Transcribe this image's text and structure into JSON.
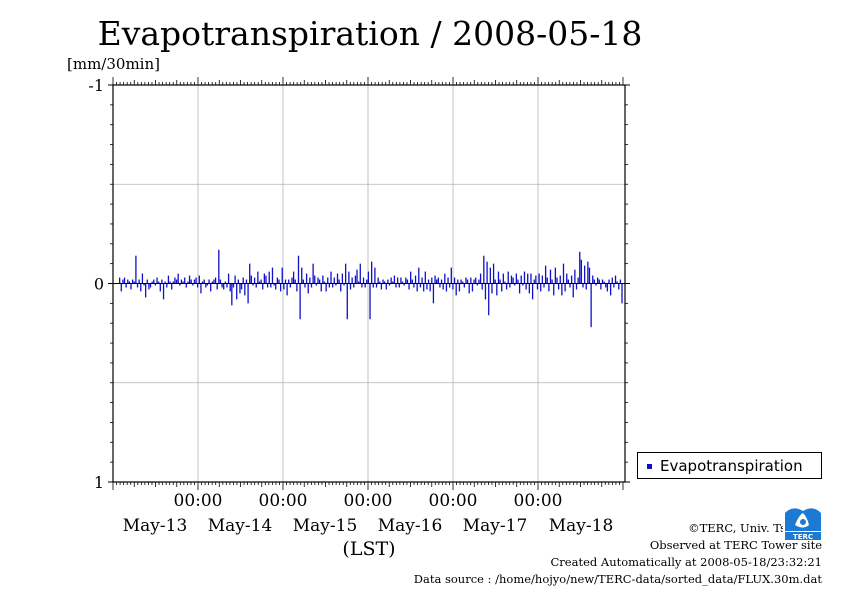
{
  "chart_data": {
    "type": "bar",
    "title": "Evapotranspiration / 2008-05-18",
    "ylabel": "[mm/30min]",
    "xlabel": "(LST)",
    "ylim": [
      -1,
      1
    ],
    "yticks": [
      "-1",
      "0",
      "1"
    ],
    "xtick_times": [
      "00:00",
      "00:00",
      "00:00",
      "00:00",
      "00:00"
    ],
    "xtick_dates": [
      "May-13",
      "May-14",
      "May-15",
      "May-16",
      "May-17",
      "May-18"
    ],
    "grid": true,
    "legend_position": "right-bottom",
    "series": [
      {
        "name": "Evapotranspiration",
        "color": "#1010c8",
        "values": [
          0.03,
          -0.04,
          0.02,
          0.03,
          -0.02,
          0.02,
          0.01,
          -0.03,
          0.02,
          0.01,
          0.14,
          -0.02,
          0.02,
          -0.04,
          0.05,
          -0.01,
          -0.07,
          0.02,
          -0.03,
          -0.02,
          0.01,
          0.02,
          -0.01,
          0.03,
          0.01,
          -0.04,
          0.02,
          -0.08,
          0.01,
          -0.02,
          0.04,
          0.01,
          -0.03,
          0.01,
          0.03,
          0.02,
          0.05,
          -0.01,
          0.02,
          0.01,
          0.03,
          -0.02,
          0.01,
          0.04,
          0.02,
          -0.01,
          0.02,
          0.03,
          -0.02,
          0.04,
          -0.05,
          0.01,
          0.02,
          -0.02,
          -0.01,
          0.02,
          -0.04,
          0.01,
          0.02,
          0.03,
          -0.03,
          0.17,
          0.02,
          -0.02,
          -0.03,
          0.01,
          -0.02,
          0.05,
          -0.04,
          -0.11,
          -0.02,
          0.04,
          -0.08,
          0.02,
          -0.05,
          -0.03,
          0.03,
          -0.06,
          0.02,
          -0.1,
          0.1,
          0.04,
          -0.01,
          0.03,
          -0.02,
          0.06,
          0.01,
          0.02,
          -0.03,
          0.05,
          0.04,
          -0.02,
          0.06,
          -0.02,
          0.08,
          -0.01,
          -0.03,
          0.03,
          0.02,
          -0.04,
          0.08,
          -0.03,
          0.02,
          -0.06,
          0.02,
          -0.02,
          0.03,
          0.06,
          0.02,
          -0.04,
          0.14,
          -0.18,
          0.08,
          0.02,
          -0.02,
          0.05,
          -0.05,
          0.03,
          -0.02,
          0.1,
          0.04,
          -0.01,
          0.03,
          0.02,
          -0.04,
          0.04,
          0.01,
          -0.04,
          0.03,
          -0.02,
          0.06,
          -0.02,
          0.03,
          -0.01,
          0.05,
          0.02,
          -0.04,
          0.05,
          -0.01,
          0.1,
          -0.18,
          0.06,
          -0.03,
          0.03,
          -0.02,
          0.04,
          0.07,
          0.01,
          0.1,
          -0.02,
          0.03,
          -0.02,
          0.02,
          0.06,
          -0.18,
          0.11,
          -0.02,
          0.08,
          -0.02,
          0.03,
          0.01,
          -0.03,
          0.02,
          0.01,
          -0.03,
          0.02,
          -0.01,
          0.03,
          0.01,
          0.04,
          -0.02,
          0.03,
          -0.02,
          0.03,
          0.01,
          -0.01,
          0.03,
          0.02,
          -0.03,
          0.06,
          0.02,
          -0.02,
          0.04,
          -0.04,
          0.08,
          -0.02,
          0.03,
          -0.04,
          0.06,
          -0.03,
          0.02,
          -0.04,
          0.03,
          -0.1,
          0.04,
          0.02,
          0.03,
          -0.02,
          0.02,
          -0.03,
          0.05,
          -0.04,
          0.03,
          -0.02,
          0.08,
          -0.03,
          0.03,
          -0.06,
          0.02,
          -0.04,
          0.02,
          0.01,
          -0.02,
          0.03,
          0.02,
          -0.05,
          0.03,
          -0.04,
          0.02,
          0.03,
          -0.01,
          0.02,
          0.05,
          -0.03,
          0.14,
          -0.08,
          0.11,
          -0.16,
          0.08,
          -0.05,
          0.1,
          0.02,
          -0.06,
          0.06,
          0.02,
          -0.04,
          0.05,
          0.01,
          -0.03,
          0.06,
          -0.02,
          0.04,
          0.03,
          -0.01,
          0.05,
          0.02,
          -0.05,
          0.04,
          -0.01,
          0.06,
          -0.03,
          0.05,
          -0.05,
          0.05,
          -0.08,
          0.02,
          0.04,
          -0.03,
          0.05,
          -0.04,
          0.04,
          -0.02,
          0.09,
          0.03,
          -0.04,
          0.07,
          0.02,
          -0.06,
          0.08,
          0.03,
          -0.03,
          0.04,
          -0.06,
          0.1,
          -0.04,
          0.05,
          0.02,
          -0.02,
          0.04,
          -0.07,
          0.07,
          -0.03,
          0.03,
          0.16,
          0.12,
          -0.02,
          0.09,
          -0.03,
          0.11,
          0.08,
          -0.22,
          0.04,
          0.02,
          -0.01,
          0.03,
          0.02,
          -0.03,
          0.02,
          0.01,
          -0.02,
          -0.04,
          0.02,
          -0.06,
          0.03,
          -0.02,
          0.04,
          0.01,
          -0.03,
          0.02,
          -0.1
        ]
      }
    ]
  },
  "legend": {
    "label": "Evapotranspiration"
  },
  "footer": {
    "copyright": "©TERC, Univ. Tsukuba",
    "observed": "Observed at TERC Tower site",
    "created": "Created Automatically at 2008-05-18/23:32:21",
    "source": "Data source : /home/hojyo/new/TERC-data/sorted_data/FLUX.30m.dat"
  },
  "logo": {
    "text": "TERC",
    "color": "#1a7ad4"
  }
}
